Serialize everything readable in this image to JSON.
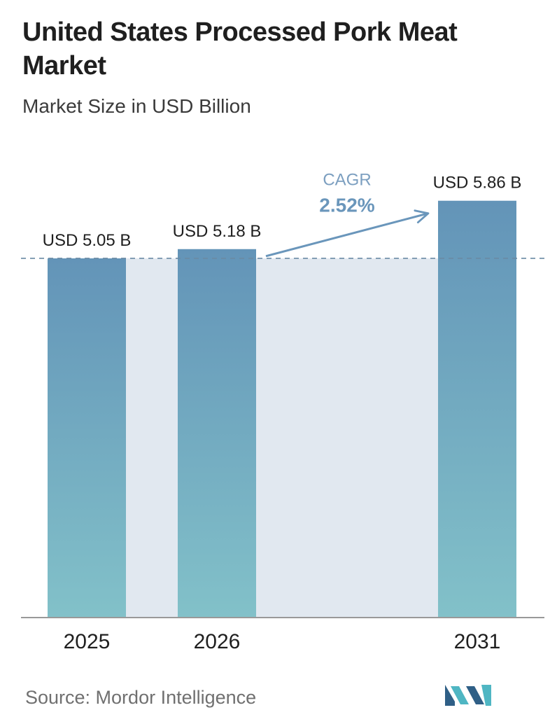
{
  "chart_data": {
    "type": "bar",
    "title": "United States Processed Pork Meat Market",
    "subtitle": "Market Size in USD Billion",
    "categories": [
      "2025",
      "2026",
      "2031"
    ],
    "values": [
      5.05,
      5.18,
      5.86
    ],
    "value_labels": [
      "USD 5.05 B",
      "USD 5.18 B",
      "USD 5.86 B"
    ],
    "unit": "USD Billion",
    "ylim": [
      0,
      6.3
    ],
    "cagr": {
      "label": "CAGR",
      "value": "2.52%"
    },
    "reference_line_value": 5.05,
    "grid": false,
    "legend": "none"
  },
  "colors": {
    "bar_top": "#6394b8",
    "bar_bottom": "#82c1c9",
    "band": "#e1e8f0",
    "axis": "#999999",
    "dashed_line": "#6a8aa4",
    "arrow": "#6a96bb",
    "cagr_label": "#7c9fc0",
    "cagr_value": "#6a96bb",
    "logo_dark": "#2f5f86",
    "logo_light": "#4fb6c3"
  },
  "source": "Source:  Mordor Intelligence",
  "logo": {
    "icon": "mordor-intelligence-logo-icon"
  }
}
